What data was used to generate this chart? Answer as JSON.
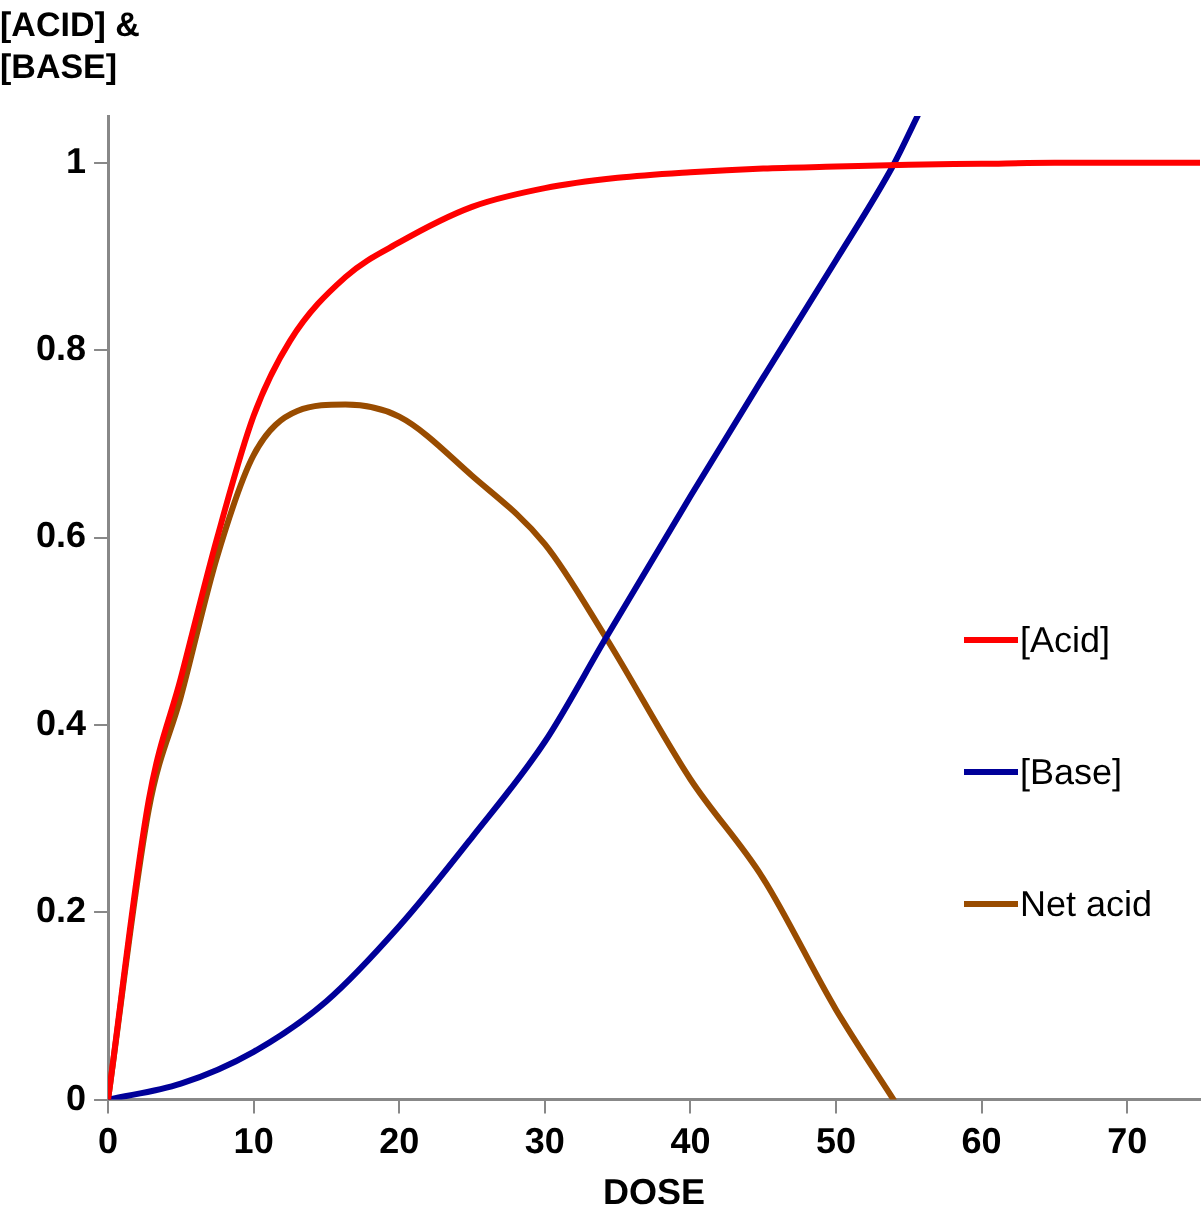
{
  "chart_data": {
    "type": "line",
    "xlabel": "DOSE",
    "ylabel": "[ACID] & [BASE]",
    "xlim": [
      0,
      75
    ],
    "ylim": [
      0,
      1.05
    ],
    "xticks": [
      0,
      10,
      20,
      30,
      40,
      50,
      60,
      70
    ],
    "yticks": [
      0,
      {
        "value": 0.2,
        "label": "0.2"
      },
      {
        "value": 0.4,
        "label": "0.4"
      },
      {
        "value": 0.6,
        "label": "0.6"
      },
      {
        "value": 0.8,
        "label": "0.8"
      },
      1
    ],
    "grid": false,
    "legend": "right",
    "marker": "none",
    "line_style": "solid",
    "series": [
      {
        "name": "[Acid]",
        "color": "#ff0000",
        "x": [
          0,
          2.8,
          5,
          7.5,
          10,
          12.5,
          16.3,
          20,
          25,
          30,
          35,
          40,
          45,
          50,
          55,
          60,
          65,
          70,
          75
        ],
        "values": [
          0,
          0.32,
          0.45,
          0.6,
          0.73,
          0.81,
          0.878,
          0.915,
          0.953,
          0.973,
          0.984,
          0.99,
          0.994,
          0.996,
          0.998,
          0.999,
          1,
          1,
          1
        ]
      },
      {
        "name": "[Base]",
        "color": "#000099",
        "x": [
          0,
          5,
          10,
          15,
          20,
          25,
          30,
          34.2,
          40,
          45,
          50,
          53.95,
          55.6
        ],
        "values": [
          0,
          0.017,
          0.051,
          0.105,
          0.185,
          0.28,
          0.382,
          0.493,
          0.644,
          0.771,
          0.896,
          0.998,
          1.05
        ]
      },
      {
        "name": "Net acid",
        "color": "#994c00",
        "x": [
          0,
          2.8,
          5,
          7.5,
          10,
          13,
          16.3,
          20,
          25,
          30,
          34.2,
          40,
          45,
          50,
          53.95
        ],
        "values": [
          0,
          0.31,
          0.43,
          0.58,
          0.688,
          0.735,
          0.742,
          0.729,
          0.666,
          0.593,
          0.493,
          0.342,
          0.236,
          0.096,
          0
        ]
      }
    ]
  }
}
